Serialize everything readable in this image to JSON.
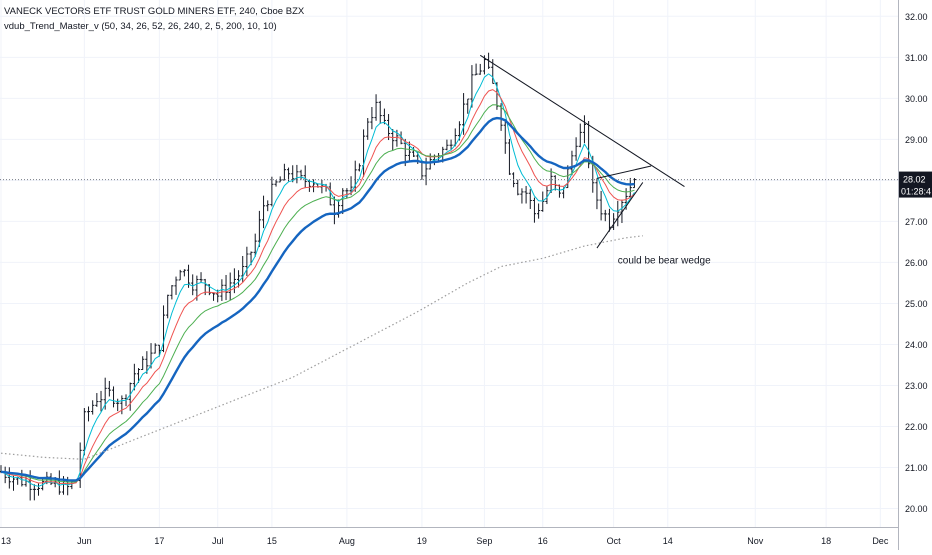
{
  "header": {
    "symbol_line": "VANECK VECTORS ETF TRUST GOLD MINERS ETF, 240, Cboe BZX",
    "indicator_line": "vdub_Trend_Master_v (50, 34, 26, 52, 26, 240, 2, 5, 200, 10, 10)"
  },
  "price_label": {
    "value": "28.02",
    "countdown": "01:28:4"
  },
  "annotation": "could be bear wedge",
  "colors": {
    "background": "#ffffff",
    "grid": "#f0f3fa",
    "bars": "#131722",
    "ema_fast": "#00bcd4",
    "ema_mid": "#ef5350",
    "ema_slow": "#4caf50",
    "ema_thick": "#1565c0",
    "ma_200": "#9e9e9e",
    "trendline": "#131722",
    "price_tag": "#131722"
  },
  "chart_data": {
    "type": "line",
    "y_scale": "linear",
    "ylim": [
      19.55,
      32.3
    ],
    "y_ticks": [
      "32.00",
      "31.00",
      "30.00",
      "29.00",
      "28.00",
      "27.00",
      "26.00",
      "25.00",
      "24.00",
      "23.00",
      "22.00",
      "21.00",
      "20.00"
    ],
    "x_ticks": [
      "13",
      "Jun",
      "17",
      "Jul",
      "15",
      "Aug",
      "19",
      "Sep",
      "16",
      "Oct",
      "14",
      "Nov",
      "18",
      "Dec"
    ],
    "x_range_bars": [
      0,
      215
    ],
    "x_tick_positions_bars": [
      0,
      20,
      38,
      52,
      65,
      83,
      101,
      116,
      130,
      147,
      160,
      181,
      198,
      211
    ],
    "grid": true,
    "last_price": 28.02,
    "price_anchors": [
      [
        0,
        20.9
      ],
      [
        4,
        20.7
      ],
      [
        8,
        20.6
      ],
      [
        12,
        20.6
      ],
      [
        16,
        20.5
      ],
      [
        18,
        20.7
      ],
      [
        20,
        22.2
      ],
      [
        23,
        22.7
      ],
      [
        26,
        22.8
      ],
      [
        29,
        22.6
      ],
      [
        32,
        23.3
      ],
      [
        35,
        23.6
      ],
      [
        38,
        24.0
      ],
      [
        40,
        25.2
      ],
      [
        43,
        25.9
      ],
      [
        46,
        25.5
      ],
      [
        49,
        25.5
      ],
      [
        52,
        25.2
      ],
      [
        55,
        25.5
      ],
      [
        58,
        25.8
      ],
      [
        61,
        26.5
      ],
      [
        63,
        27.4
      ],
      [
        66,
        27.9
      ],
      [
        69,
        28.2
      ],
      [
        72,
        28.0
      ],
      [
        75,
        28.0
      ],
      [
        78,
        27.7
      ],
      [
        80,
        27.3
      ],
      [
        82,
        27.8
      ],
      [
        84,
        27.7
      ],
      [
        86,
        28.5
      ],
      [
        88,
        29.5
      ],
      [
        90,
        29.8
      ],
      [
        92,
        29.3
      ],
      [
        95,
        29.0
      ],
      [
        98,
        28.6
      ],
      [
        101,
        28.2
      ],
      [
        104,
        28.6
      ],
      [
        107,
        28.8
      ],
      [
        110,
        29.5
      ],
      [
        113,
        30.4
      ],
      [
        116,
        30.9
      ],
      [
        118,
        30.3
      ],
      [
        120,
        29.5
      ],
      [
        122,
        28.3
      ],
      [
        124,
        27.8
      ],
      [
        126,
        27.7
      ],
      [
        128,
        27.2
      ],
      [
        130,
        27.5
      ],
      [
        132,
        28.0
      ],
      [
        134,
        27.6
      ],
      [
        136,
        28.2
      ],
      [
        138,
        29.0
      ],
      [
        140,
        29.2
      ],
      [
        142,
        27.8
      ],
      [
        144,
        27.3
      ],
      [
        146,
        27.0
      ],
      [
        148,
        27.4
      ],
      [
        150,
        27.7
      ],
      [
        152,
        28.02
      ]
    ],
    "series": [
      {
        "key": "ema_fast",
        "periods": 5,
        "style": "solid"
      },
      {
        "key": "ema_mid",
        "periods": 10,
        "style": "solid"
      },
      {
        "key": "ema_slow",
        "periods": 17,
        "style": "solid"
      },
      {
        "key": "ema_thick",
        "periods": 26,
        "style": "solid-thick"
      },
      {
        "key": "ma_200",
        "anchors": [
          [
            0,
            21.35
          ],
          [
            10,
            21.25
          ],
          [
            20,
            21.2
          ],
          [
            30,
            21.6
          ],
          [
            40,
            22.0
          ],
          [
            55,
            22.6
          ],
          [
            70,
            23.2
          ],
          [
            85,
            24.0
          ],
          [
            100,
            24.8
          ],
          [
            112,
            25.5
          ],
          [
            120,
            25.9
          ],
          [
            130,
            26.1
          ],
          [
            140,
            26.4
          ],
          [
            150,
            26.6
          ],
          [
            154,
            26.65
          ]
        ],
        "style": "dotted"
      }
    ],
    "trendlines": [
      {
        "from": [
          115,
          31.05
        ],
        "to": [
          164,
          27.85
        ]
      },
      {
        "from": [
          143,
          28.05
        ],
        "to": [
          156,
          28.35
        ]
      },
      {
        "from": [
          143,
          26.35
        ],
        "to": [
          154,
          27.95
        ]
      }
    ]
  }
}
